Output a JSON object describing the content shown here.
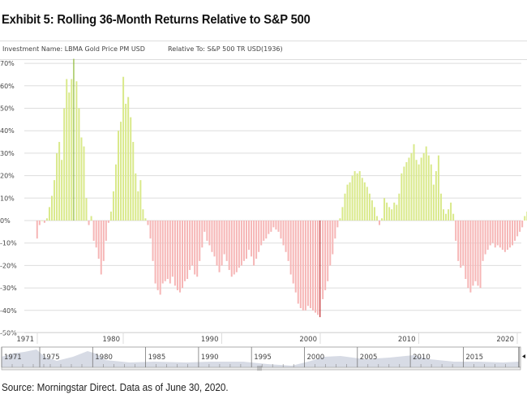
{
  "title": "Exhibit 5: Rolling 36-Month Returns Relative to S&P 500",
  "header": {
    "investment": "Investment Name: LBMA Gold Price PM USD",
    "relative": "Relative To: S&P 500 TR USD(1936)"
  },
  "source": "Source: Morningstar Direct. Data as of June 30, 2020.",
  "navigator": {
    "labels": [
      "1971",
      "1975",
      "1980",
      "1985",
      "1990",
      "1995",
      "2000",
      "2005",
      "2010",
      "2015"
    ]
  },
  "colors": {
    "positive": "#d9e98a",
    "positive_highlight": "#8db832",
    "negative": "#f6b6b6",
    "negative_highlight": "#c0282b",
    "grid": "#dddddd"
  },
  "chart_data": {
    "type": "bar",
    "title": "",
    "xlabel": "",
    "ylabel": "",
    "ylim": [
      -50,
      70
    ],
    "yticks": [
      "70%",
      "60%",
      "50%",
      "40%",
      "30%",
      "20%",
      "10%",
      "0%",
      "-10%",
      "-20%",
      "-30%",
      "-40%",
      "-50%"
    ],
    "ytick_values": [
      70,
      60,
      50,
      40,
      30,
      20,
      10,
      0,
      -10,
      -20,
      -30,
      -40,
      -50
    ],
    "xticks": [
      "1971",
      "1980",
      "1990",
      "2000",
      "2010",
      "2020"
    ],
    "xtick_values": [
      1971,
      1980,
      1990,
      2000,
      2010,
      2020
    ],
    "grid": true,
    "x_start": 1971.25,
    "x_step": 0.25,
    "values": [
      -8,
      -2,
      0,
      -1,
      1,
      6,
      11,
      18,
      30,
      35,
      27,
      50,
      63,
      57,
      63,
      72,
      62,
      50,
      37,
      33,
      10,
      -2,
      2,
      -9,
      -12,
      -17,
      -24,
      -18,
      -9,
      -1,
      4,
      13,
      25,
      40,
      44,
      64,
      52,
      55,
      46,
      35,
      21,
      13,
      18,
      5,
      1,
      -2,
      -8,
      -18,
      -28,
      -31,
      -33,
      -28,
      -27,
      -26,
      -28,
      -25,
      -29,
      -31,
      -32,
      -30,
      -27,
      -26,
      -22,
      -20,
      -24,
      -25,
      -18,
      -12,
      -5,
      -9,
      -11,
      -14,
      -16,
      -20,
      -23,
      -20,
      -15,
      -18,
      -22,
      -25,
      -24,
      -23,
      -21,
      -20,
      -18,
      -17,
      -13,
      -16,
      -20,
      -17,
      -14,
      -11,
      -9,
      -8,
      -6,
      -5,
      -3,
      -4,
      -5,
      -8,
      -11,
      -14,
      -18,
      -24,
      -28,
      -32,
      -37,
      -39,
      -40,
      -40,
      -38,
      -39,
      -40,
      -41,
      -42,
      -43,
      -35,
      -31,
      -27,
      -20,
      -15,
      -8,
      -3,
      1,
      6,
      12,
      16,
      17,
      20,
      22,
      21,
      22,
      19,
      17,
      15,
      12,
      9,
      6,
      2,
      -2,
      1,
      10,
      8,
      6,
      5,
      8,
      7,
      12,
      21,
      24,
      26,
      28,
      30,
      34,
      27,
      25,
      28,
      30,
      33,
      29,
      25,
      16,
      22,
      29,
      12,
      5,
      3,
      5,
      8,
      3,
      -9,
      -18,
      -21,
      -20,
      -26,
      -30,
      -32,
      -29,
      -27,
      -29,
      -30,
      -18,
      -15,
      -13,
      -11,
      -10,
      -12,
      -11,
      -12,
      -13,
      -14,
      -13,
      -12,
      -11,
      -9,
      -7,
      -5,
      -3,
      2,
      4
    ]
  }
}
